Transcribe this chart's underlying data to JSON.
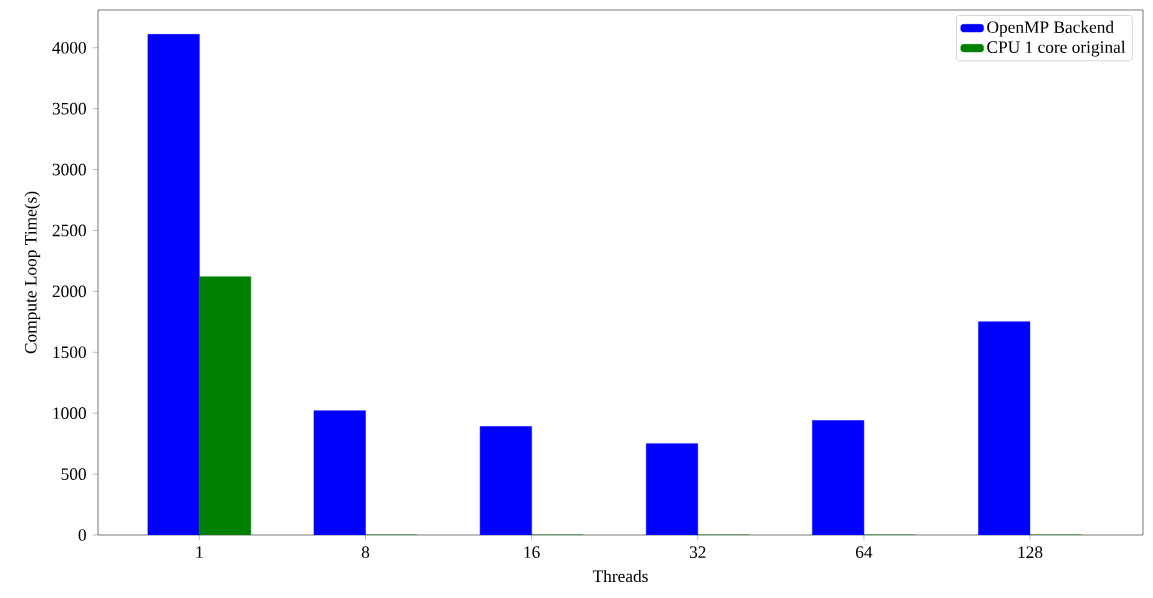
{
  "chart_data": {
    "type": "bar",
    "xlabel": "Threads",
    "ylabel": "Compute Loop Time(s)",
    "categories": [
      "1",
      "8",
      "16",
      "32",
      "64",
      "128"
    ],
    "series": [
      {
        "name": "OpenMP Backend",
        "color": "#0000ff",
        "values": [
          4110,
          1020,
          890,
          750,
          940,
          1750
        ]
      },
      {
        "name": "CPU 1 core original",
        "color": "#008000",
        "values": [
          2120,
          0,
          0,
          0,
          0,
          0
        ]
      }
    ],
    "ylim": [
      0,
      4310
    ],
    "yticks": [
      0,
      500,
      1000,
      1500,
      2000,
      2500,
      3000,
      3500,
      4000
    ],
    "legend": "top right"
  }
}
